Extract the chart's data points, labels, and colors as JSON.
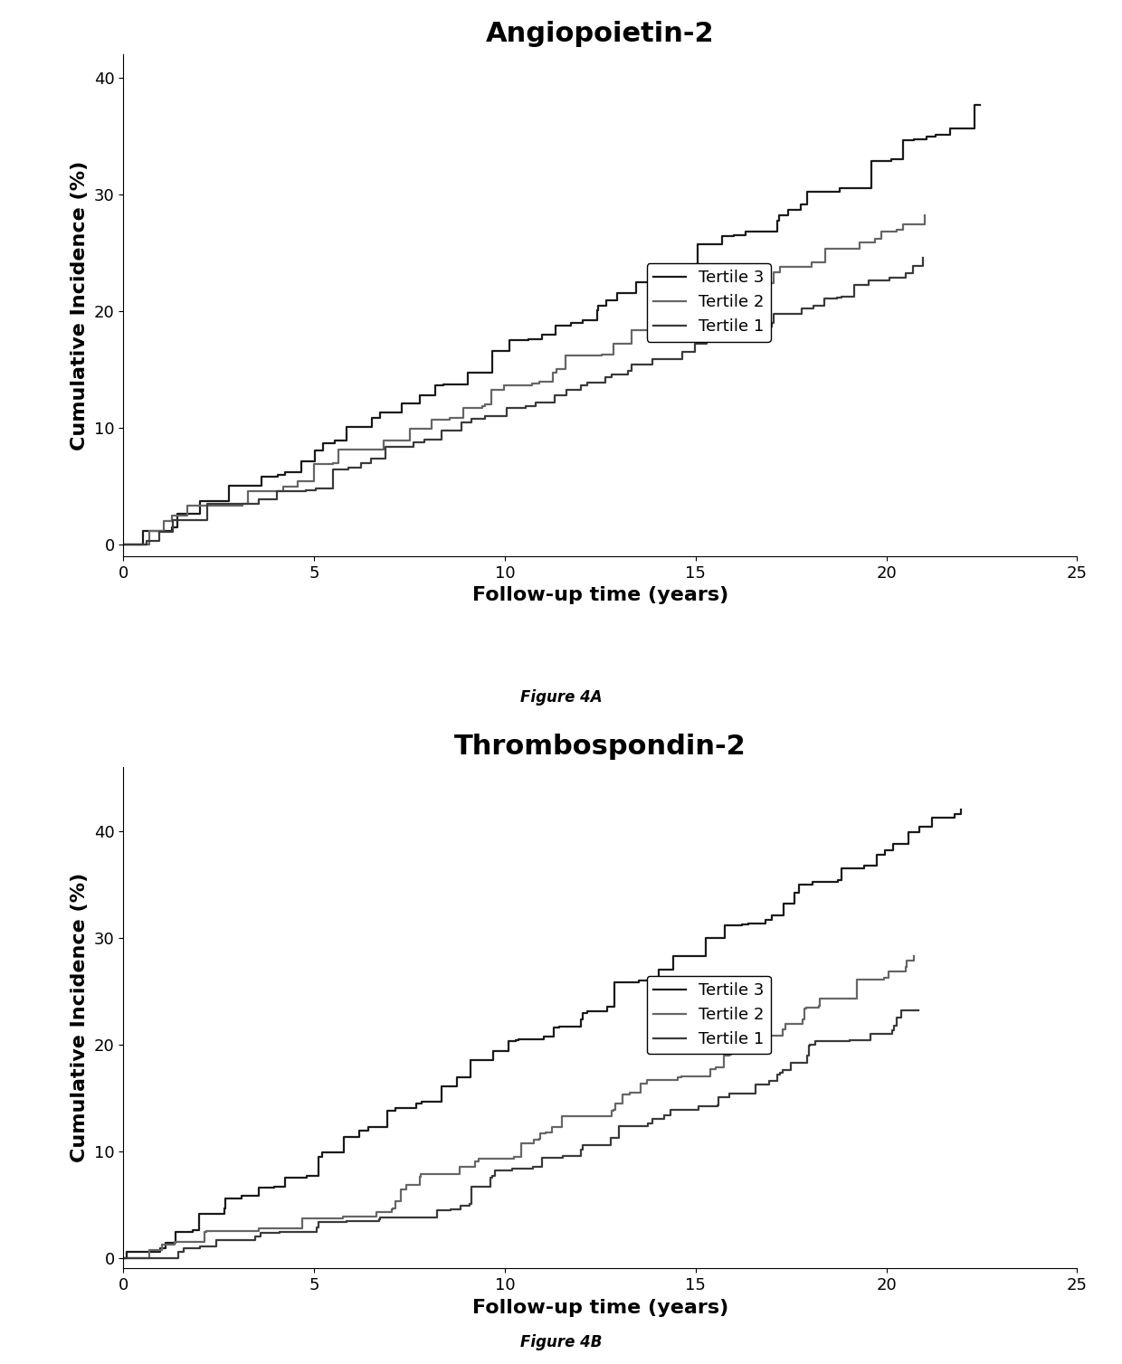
{
  "fig4a_title": "Angiopoietin-2",
  "fig4b_title": "Thrombospondin-2",
  "fig4a_caption": "Figure 4A",
  "fig4b_caption": "Figure 4B",
  "xlabel": "Follow-up time (years)",
  "ylabel": "Cumulative Incidence (%)",
  "xlim": [
    0,
    25
  ],
  "ylim_a": [
    -1,
    42
  ],
  "ylim_b": [
    -1,
    46
  ],
  "xticks": [
    0,
    5,
    10,
    15,
    20,
    25
  ],
  "yticks_a": [
    0,
    10,
    20,
    30,
    40
  ],
  "yticks_b": [
    0,
    10,
    20,
    30,
    40
  ],
  "legend_labels": [
    "Tertile 3",
    "Tertile 2",
    "Tertile 1"
  ],
  "color_t3": "#1a1a1a",
  "color_t2": "#666666",
  "color_t1": "#3a3a3a",
  "line_width": 1.6,
  "background_color": "#ffffff",
  "title_fontsize": 22,
  "axis_label_fontsize": 16,
  "tick_fontsize": 13,
  "legend_fontsize": 13,
  "caption_fontsize": 12
}
